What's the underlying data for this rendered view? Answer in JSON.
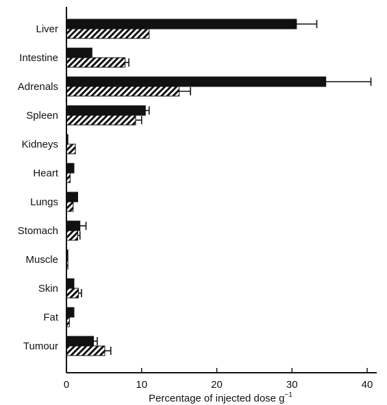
{
  "chart_data": {
    "type": "bar",
    "orientation": "horizontal",
    "categories": [
      "Liver",
      "Intestine",
      "Adrenals",
      "Spleen",
      "Kidneys",
      "Heart",
      "Lungs",
      "Stomach",
      "Muscle",
      "Skin",
      "Fat",
      "Tumour"
    ],
    "series": [
      {
        "fill": "solid",
        "color": "#111111",
        "values": [
          30.6,
          3.4,
          34.5,
          10.5,
          0.2,
          1.0,
          1.5,
          1.8,
          0.2,
          1.0,
          1.0,
          3.6
        ],
        "errors": [
          2.7,
          0,
          6.0,
          0.5,
          0,
          0,
          0,
          0.8,
          0,
          0,
          0,
          0.5
        ]
      },
      {
        "fill": "hatched",
        "color": "#111111",
        "values": [
          11.0,
          7.8,
          15.0,
          9.2,
          1.2,
          0.5,
          0.9,
          1.5,
          0.2,
          1.6,
          0.4,
          5.1
        ],
        "errors": [
          0,
          0.5,
          1.5,
          0.8,
          0,
          0,
          0,
          0.3,
          0,
          0.4,
          0,
          0.8
        ]
      }
    ],
    "xlabel": "Percentage of injected dose g",
    "xlabel_unit_sup": "−1",
    "xlim": [
      0,
      41
    ],
    "xticks": [
      0,
      10,
      20,
      30,
      40
    ],
    "grid": false,
    "legend": "none"
  }
}
